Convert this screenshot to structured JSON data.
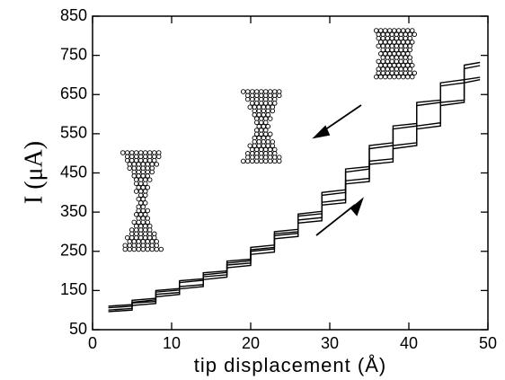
{
  "chart_data": {
    "type": "line",
    "xlabel": "tip displacement (Å)",
    "ylabel": "I (μA)",
    "x": [
      2,
      5,
      5,
      8,
      8,
      11,
      11,
      14,
      14,
      17,
      17,
      20,
      20,
      23,
      23,
      26,
      26,
      29,
      29,
      32,
      32,
      35,
      35,
      38,
      38,
      41,
      41,
      44,
      44,
      47,
      47,
      49
    ],
    "series": [
      {
        "color": "#000000",
        "values": [
          110,
          114,
          125,
          130,
          150,
          155,
          175,
          180,
          195,
          200,
          225,
          230,
          260,
          266,
          300,
          306,
          345,
          352,
          400,
          407,
          460,
          466,
          520,
          527,
          570,
          576,
          630,
          636,
          680,
          688,
          725,
          732
        ]
      },
      {
        "color": "#000000",
        "values": [
          106,
          110,
          120,
          126,
          146,
          151,
          170,
          176,
          190,
          196,
          220,
          226,
          254,
          260,
          295,
          300,
          340,
          346,
          393,
          400,
          452,
          460,
          512,
          520,
          562,
          570,
          622,
          630,
          672,
          680,
          716,
          724
        ]
      },
      {
        "color": "#000000",
        "values": [
          100,
          104,
          118,
          122,
          140,
          145,
          160,
          165,
          185,
          190,
          215,
          220,
          250,
          256,
          290,
          296,
          330,
          336,
          375,
          382,
          430,
          436,
          480,
          486,
          520,
          527,
          570,
          578,
          630,
          636,
          688,
          694
        ]
      },
      {
        "color": "#000000",
        "values": [
          96,
          100,
          112,
          117,
          134,
          140,
          154,
          160,
          178,
          184,
          208,
          214,
          242,
          248,
          282,
          288,
          322,
          328,
          368,
          374,
          422,
          428,
          472,
          478,
          512,
          520,
          562,
          570,
          622,
          630,
          680,
          688
        ]
      }
    ],
    "xlim": [
      0,
      50
    ],
    "ylim": [
      50,
      850
    ],
    "xticks": [
      0,
      10,
      20,
      30,
      40,
      50
    ],
    "yticks": [
      50,
      150,
      250,
      350,
      450,
      550,
      650,
      750,
      850
    ]
  }
}
